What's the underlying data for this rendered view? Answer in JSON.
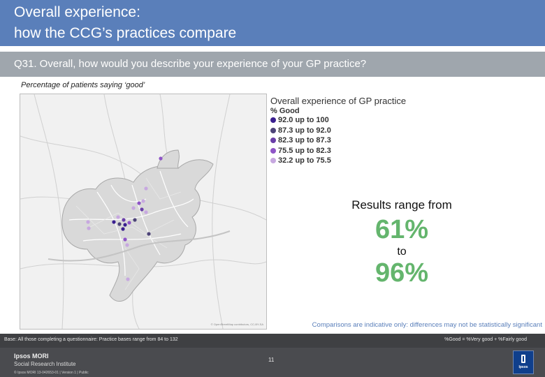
{
  "header": {
    "title_line1": "Overall experience:",
    "title_line2": "how the CCG’s practices compare",
    "background": "#5a7fba"
  },
  "question": {
    "text": "Q31. Overall, how would you describe your experience of your GP practice?",
    "background": "#9fa6ad"
  },
  "subtitle": "Percentage of patients saying ‘good’",
  "legend": {
    "title": "Overall experience of GP practice",
    "subtitle": "% Good",
    "items": [
      {
        "label": "92.0 up to 100",
        "color": "#3a1f8f"
      },
      {
        "label": "87.3 up to 92.0",
        "color": "#4d4478"
      },
      {
        "label": "82.3 up to 87.3",
        "color": "#6a3ea8"
      },
      {
        "label": "75.5 up to 82.3",
        "color": "#8f55c7"
      },
      {
        "label": "32.2 up to 75.5",
        "color": "#c7a8e0"
      }
    ]
  },
  "map": {
    "credit": "© OpenStreetMap contributors, CC-BY-SA"
  },
  "range": {
    "intro": "Results range from",
    "min": "61%",
    "to": "to",
    "max": "96%",
    "accent": "#64b56d"
  },
  "comparison_note": "Comparisons are indicative only: differences may not be statistically significant",
  "base": {
    "text": "Base: All those completing a questionnaire: Practice bases range from 84 to 132",
    "good_definition": "%Good = %Very good + %Fairly good"
  },
  "footer": {
    "brand_name": "Ipsos MORI",
    "brand_unit": "Social Research Institute",
    "copyright": "© Ipsos MORI     13-042653-01 | Version 1 | Public",
    "page_number": "11",
    "logo_text": "Ipsos"
  }
}
